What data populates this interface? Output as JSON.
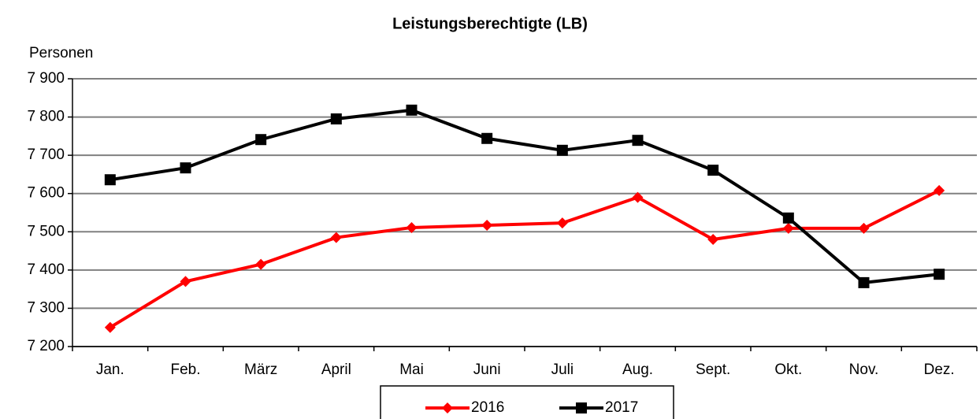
{
  "chart_data": {
    "type": "line",
    "title": "Leistungsberechtigte (LB)",
    "y_label": "Personen",
    "categories": [
      "Jan.",
      "Feb.",
      "März",
      "April",
      "Mai",
      "Juni",
      "Juli",
      "Aug.",
      "Sept.",
      "Okt.",
      "Nov.",
      "Dez."
    ],
    "series": [
      {
        "name": "2016",
        "color": "#ff0000",
        "marker": "diamond",
        "values": [
          7250,
          7370,
          7415,
          7485,
          7511,
          7517,
          7523,
          7590,
          7480,
          7509,
          7509,
          7608
        ]
      },
      {
        "name": "2017",
        "color": "#000000",
        "marker": "square",
        "values": [
          7636,
          7667,
          7741,
          7795,
          7818,
          7744,
          7713,
          7739,
          7661,
          7536,
          7367,
          7389
        ]
      }
    ],
    "ylim": [
      7200,
      7900
    ],
    "yticks": [
      {
        "value": 7200,
        "label": "7 200"
      },
      {
        "value": 7300,
        "label": "7 300"
      },
      {
        "value": 7400,
        "label": "7 400"
      },
      {
        "value": 7500,
        "label": "7 500"
      },
      {
        "value": 7600,
        "label": "7 600"
      },
      {
        "value": 7700,
        "label": "7 700"
      },
      {
        "value": 7800,
        "label": "7 800"
      },
      {
        "value": 7900,
        "label": "7 900"
      }
    ],
    "grid": true,
    "legend": "bottom"
  }
}
